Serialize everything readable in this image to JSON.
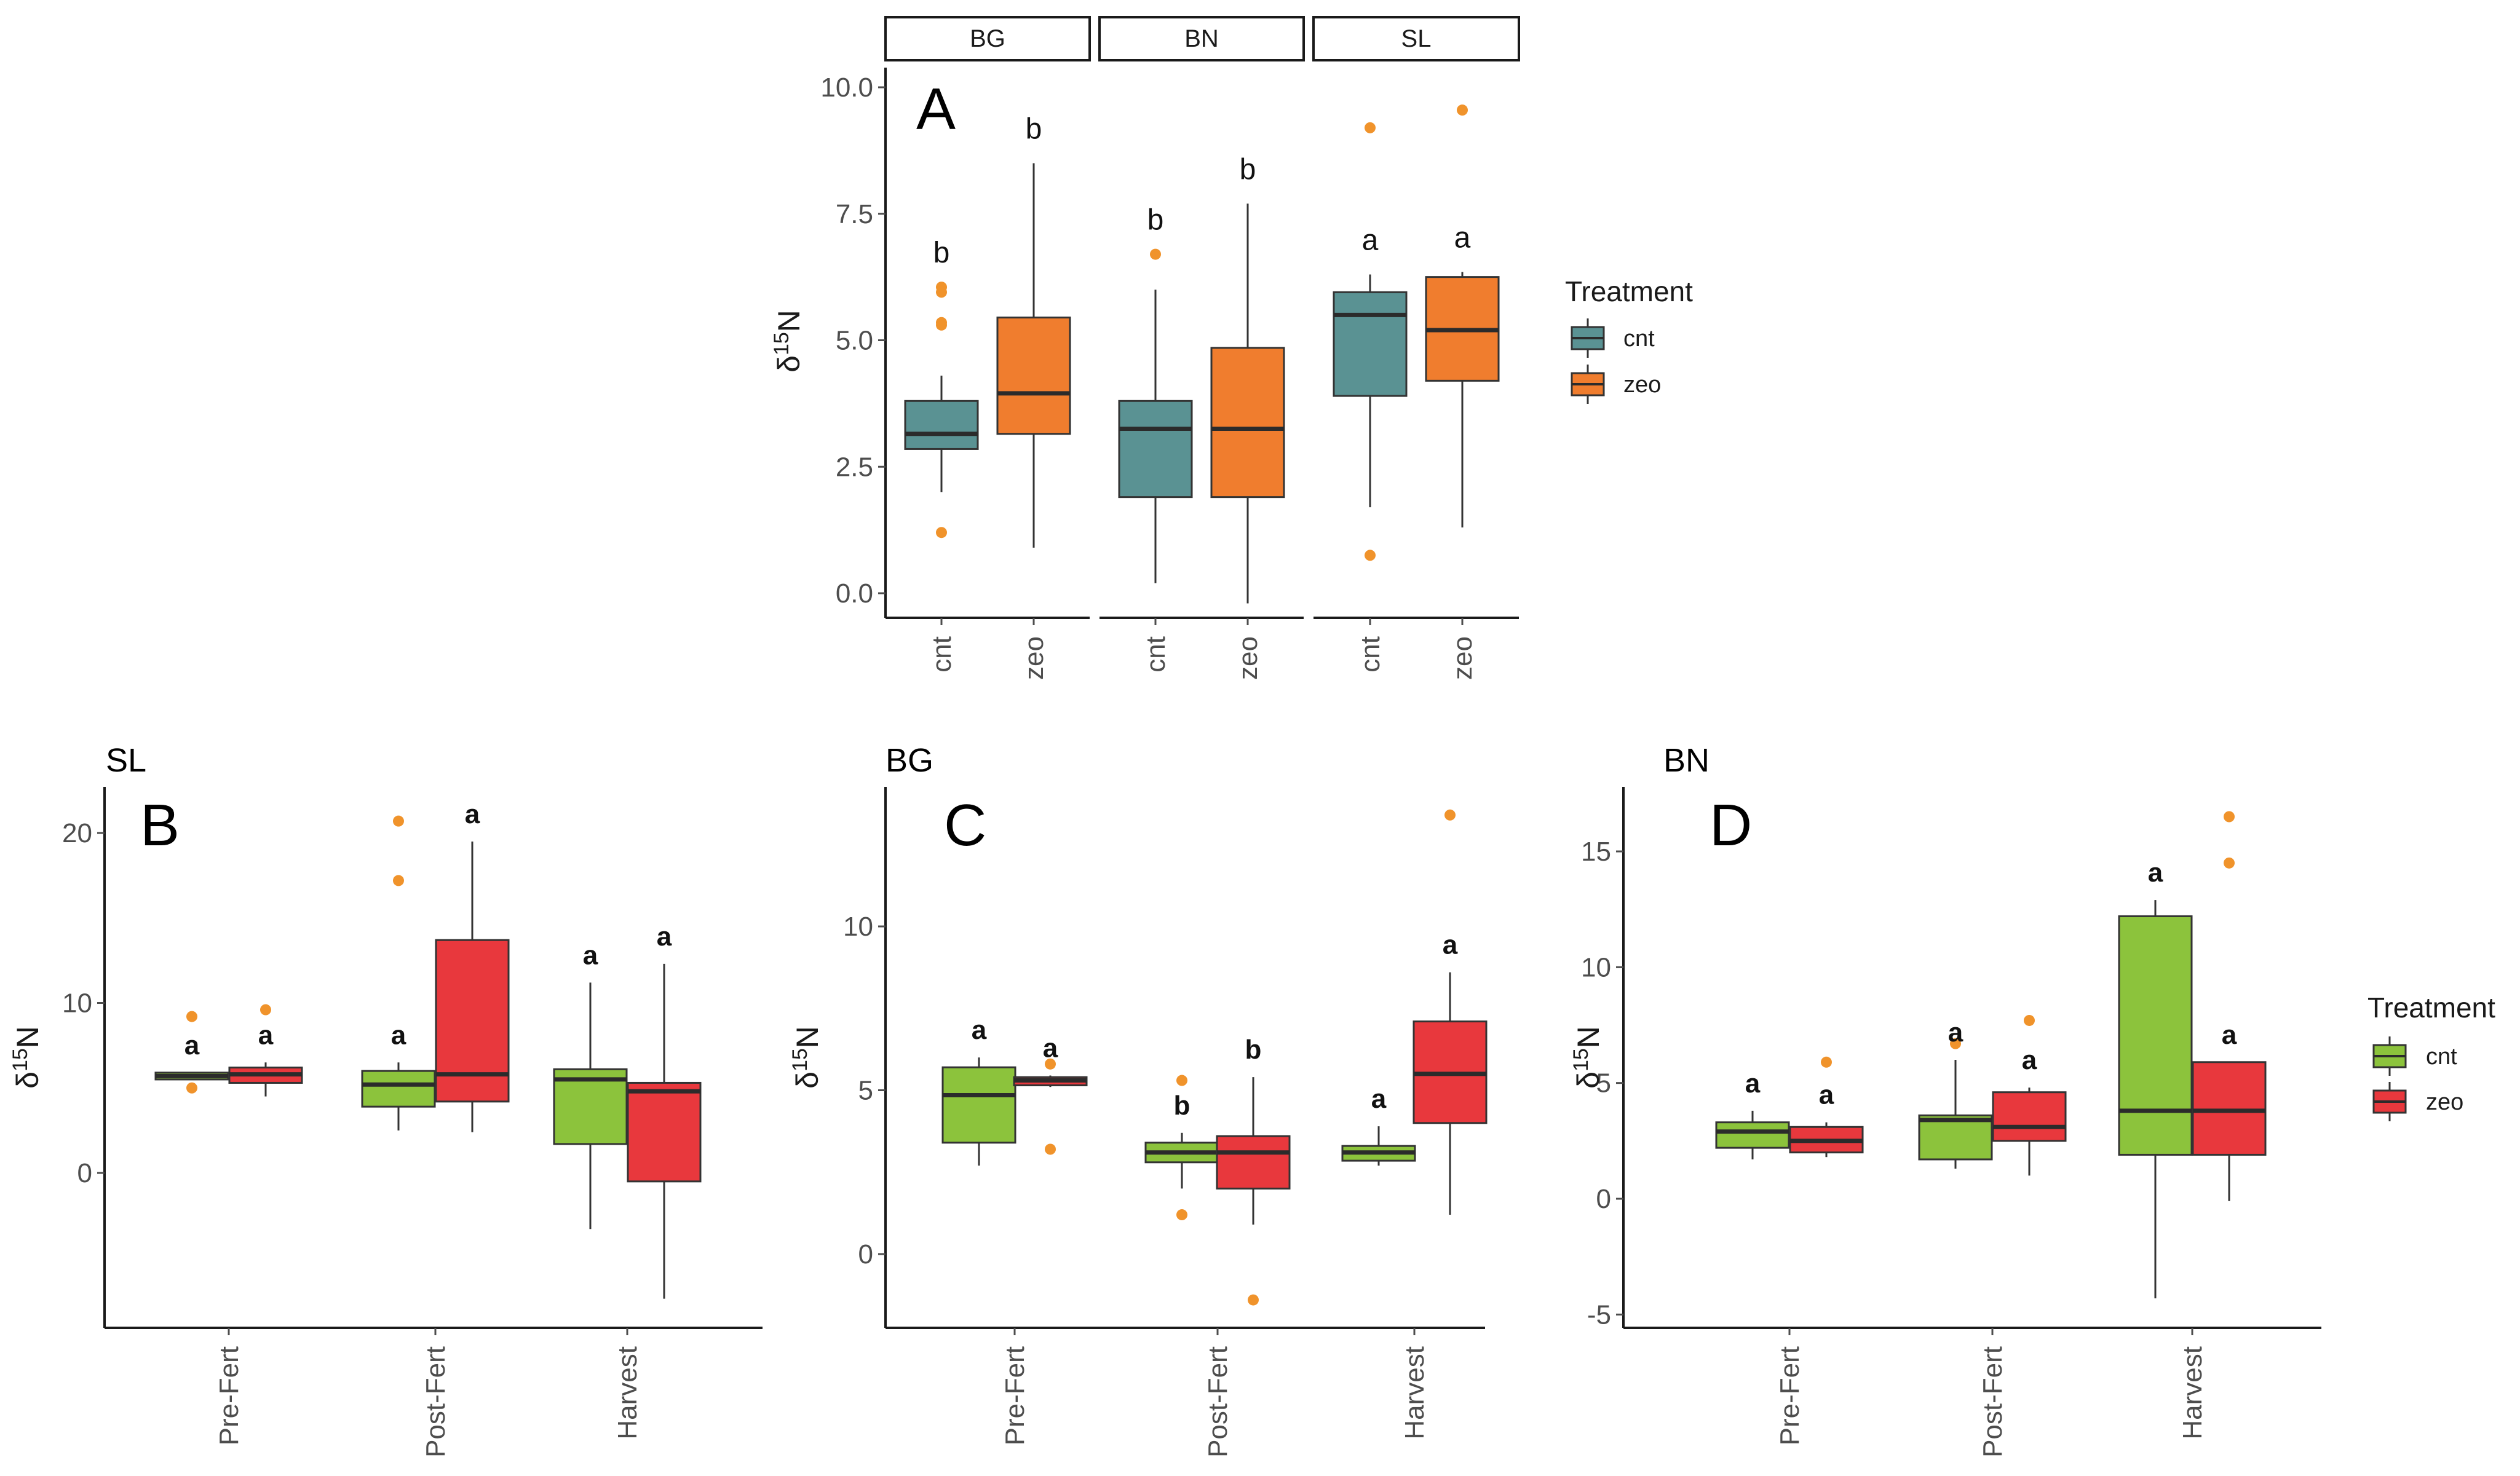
{
  "chart_data": [
    {
      "panel": "A",
      "type": "boxplot",
      "facets": [
        "BG",
        "BN",
        "SL"
      ],
      "ylabel": "δ15N",
      "yticks": [
        "0.0",
        "2.5",
        "5.0",
        "7.5",
        "10.0"
      ],
      "ylim": [
        -0.3,
        10.5
      ],
      "legend": {
        "title": "Treatment",
        "entries": [
          {
            "label": "cnt",
            "color": "#5a9293"
          },
          {
            "label": "zeo",
            "color": "#f07d2e"
          }
        ]
      },
      "groups": [
        {
          "facet": "BG",
          "label": "cnt",
          "series": "cnt",
          "whisker_low": 2.0,
          "q1": 2.85,
          "median": 3.15,
          "q3": 3.8,
          "whisker_high": 4.3,
          "outliers": [
            1.2,
            5.3,
            5.35,
            5.95,
            6.05
          ],
          "sig": "b"
        },
        {
          "facet": "BG",
          "label": "zeo",
          "series": "zeo",
          "whisker_low": 0.9,
          "q1": 3.15,
          "median": 3.95,
          "q3": 5.45,
          "whisker_high": 8.5,
          "outliers": [],
          "sig": "b"
        },
        {
          "facet": "BN",
          "label": "cnt",
          "series": "cnt",
          "whisker_low": 0.2,
          "q1": 1.9,
          "median": 3.25,
          "q3": 3.8,
          "whisker_high": 6.0,
          "outliers": [
            6.7
          ],
          "sig": "b"
        },
        {
          "facet": "BN",
          "label": "zeo",
          "series": "zeo",
          "whisker_low": -0.2,
          "q1": 1.9,
          "median": 3.25,
          "q3": 4.85,
          "whisker_high": 7.7,
          "outliers": [],
          "sig": "b"
        },
        {
          "facet": "SL",
          "label": "cnt",
          "series": "cnt",
          "whisker_low": 1.7,
          "q1": 3.9,
          "median": 5.5,
          "q3": 5.95,
          "whisker_high": 6.3,
          "outliers": [
            0.75,
            9.2
          ],
          "sig": "a"
        },
        {
          "facet": "SL",
          "label": "zeo",
          "series": "zeo",
          "whisker_low": 1.3,
          "q1": 4.2,
          "median": 5.2,
          "q3": 6.25,
          "whisker_high": 6.35,
          "outliers": [
            9.55
          ],
          "sig": "a"
        }
      ]
    },
    {
      "panel": "B",
      "site": "SL",
      "type": "boxplot",
      "categories": [
        "Pre-Fert",
        "Post-Fert",
        "Harvest"
      ],
      "ylabel": "δ15N",
      "yticks": [
        "0",
        "10",
        "20"
      ],
      "ylim": [
        -9,
        22
      ],
      "groups": [
        {
          "category": "Pre-Fert",
          "series": "cnt",
          "whisker_low": 5.5,
          "q1": 5.5,
          "median": 5.7,
          "q3": 5.9,
          "whisker_high": 5.9,
          "outliers": [
            5.0,
            9.2
          ],
          "sig": "a"
        },
        {
          "category": "Pre-Fert",
          "series": "zeo",
          "whisker_low": 4.5,
          "q1": 5.3,
          "median": 5.8,
          "q3": 6.2,
          "whisker_high": 6.5,
          "outliers": [
            9.6
          ],
          "sig": "a"
        },
        {
          "category": "Post-Fert",
          "series": "cnt",
          "whisker_low": 2.5,
          "q1": 3.9,
          "median": 5.2,
          "q3": 6.0,
          "whisker_high": 6.5,
          "outliers": [
            17.2,
            20.7
          ],
          "sig": "a"
        },
        {
          "category": "Post-Fert",
          "series": "zeo",
          "whisker_low": 2.4,
          "q1": 4.2,
          "median": 5.8,
          "q3": 13.7,
          "whisker_high": 19.5,
          "outliers": [],
          "sig": "a"
        },
        {
          "category": "Harvest",
          "series": "cnt",
          "whisker_low": -3.3,
          "q1": 1.7,
          "median": 5.5,
          "q3": 6.1,
          "whisker_high": 11.2,
          "outliers": [],
          "sig": "a"
        },
        {
          "category": "Harvest",
          "series": "zeo",
          "whisker_low": -7.4,
          "q1": -0.5,
          "median": 4.8,
          "q3": 5.3,
          "whisker_high": 12.3,
          "outliers": [],
          "sig": "a"
        }
      ]
    },
    {
      "panel": "C",
      "site": "BG",
      "type": "boxplot",
      "categories": [
        "Pre-Fert",
        "Post-Fert",
        "Harvest"
      ],
      "ylabel": "δ15N",
      "yticks": [
        "0",
        "5",
        "10"
      ],
      "ylim": [
        -2.1,
        14.4
      ],
      "groups": [
        {
          "category": "Pre-Fert",
          "series": "cnt",
          "whisker_low": 2.7,
          "q1": 3.4,
          "median": 4.85,
          "q3": 5.7,
          "whisker_high": 6.0,
          "outliers": [],
          "sig": "a"
        },
        {
          "category": "Pre-Fert",
          "series": "zeo",
          "whisker_low": 5.1,
          "q1": 5.15,
          "median": 5.3,
          "q3": 5.4,
          "whisker_high": 5.45,
          "outliers": [
            3.2,
            5.8
          ],
          "sig": "a"
        },
        {
          "category": "Post-Fert",
          "series": "cnt",
          "whisker_low": 2.0,
          "q1": 2.8,
          "median": 3.1,
          "q3": 3.4,
          "whisker_high": 3.7,
          "outliers": [
            1.2,
            5.3
          ],
          "sig": "b"
        },
        {
          "category": "Post-Fert",
          "series": "zeo",
          "whisker_low": 0.9,
          "q1": 2.0,
          "median": 3.1,
          "q3": 3.6,
          "whisker_high": 5.4,
          "outliers": [
            -1.4
          ],
          "sig": "b"
        },
        {
          "category": "Harvest",
          "series": "cnt",
          "whisker_low": 2.7,
          "q1": 2.85,
          "median": 3.1,
          "q3": 3.3,
          "whisker_high": 3.9,
          "outliers": [],
          "sig": "a"
        },
        {
          "category": "Harvest",
          "series": "zeo",
          "whisker_low": 1.2,
          "q1": 4.0,
          "median": 5.5,
          "q3": 7.1,
          "whisker_high": 8.6,
          "outliers": [
            13.4
          ],
          "sig": "a"
        }
      ]
    },
    {
      "panel": "D",
      "site": "BN",
      "type": "boxplot",
      "categories": [
        "Pre-Fert",
        "Post-Fert",
        "Harvest"
      ],
      "ylabel": "δ15N",
      "yticks": [
        "-5",
        "0",
        "5",
        "10",
        "15"
      ],
      "ylim": [
        -5.2,
        17.6
      ],
      "legend": {
        "title": "Treatment",
        "entries": [
          {
            "label": "cnt",
            "color": "#8cc33c"
          },
          {
            "label": "zeo",
            "color": "#e8383d"
          }
        ]
      },
      "groups": [
        {
          "category": "Pre-Fert",
          "series": "cnt",
          "whisker_low": 1.7,
          "q1": 2.2,
          "median": 2.9,
          "q3": 3.3,
          "whisker_high": 3.8,
          "outliers": [],
          "sig": "a"
        },
        {
          "category": "Pre-Fert",
          "series": "zeo",
          "whisker_low": 1.8,
          "q1": 2.0,
          "median": 2.5,
          "q3": 3.1,
          "whisker_high": 3.3,
          "outliers": [
            5.9
          ],
          "sig": "a"
        },
        {
          "category": "Post-Fert",
          "series": "cnt",
          "whisker_low": 1.3,
          "q1": 1.7,
          "median": 3.4,
          "q3": 3.6,
          "whisker_high": 6.0,
          "outliers": [
            6.7
          ],
          "sig": "a"
        },
        {
          "category": "Post-Fert",
          "series": "zeo",
          "whisker_low": 1.0,
          "q1": 2.5,
          "median": 3.1,
          "q3": 4.6,
          "whisker_high": 4.8,
          "outliers": [
            7.7
          ],
          "sig": "a"
        },
        {
          "category": "Harvest",
          "series": "cnt",
          "whisker_low": -4.3,
          "q1": 1.9,
          "median": 3.8,
          "q3": 12.2,
          "whisker_high": 12.9,
          "outliers": [],
          "sig": "a"
        },
        {
          "category": "Harvest",
          "series": "zeo",
          "whisker_low": -0.1,
          "q1": 1.9,
          "median": 3.8,
          "q3": 5.9,
          "whisker_high": 5.9,
          "outliers": [
            14.5,
            16.5
          ],
          "sig": "a"
        }
      ]
    }
  ],
  "colors": {
    "cnt_A": "#5a9293",
    "zeo_A": "#f07d2e",
    "cnt_BCD": "#8cc33c",
    "zeo_BCD": "#e8383d",
    "outlier": "#f0932b",
    "line": "#333333",
    "median": "#2b2b2b"
  },
  "panel_letters": {
    "A": "A",
    "B": "B",
    "C": "C",
    "D": "D"
  },
  "panel_sites": {
    "B": "SL",
    "C": "BG",
    "D": "BN"
  }
}
